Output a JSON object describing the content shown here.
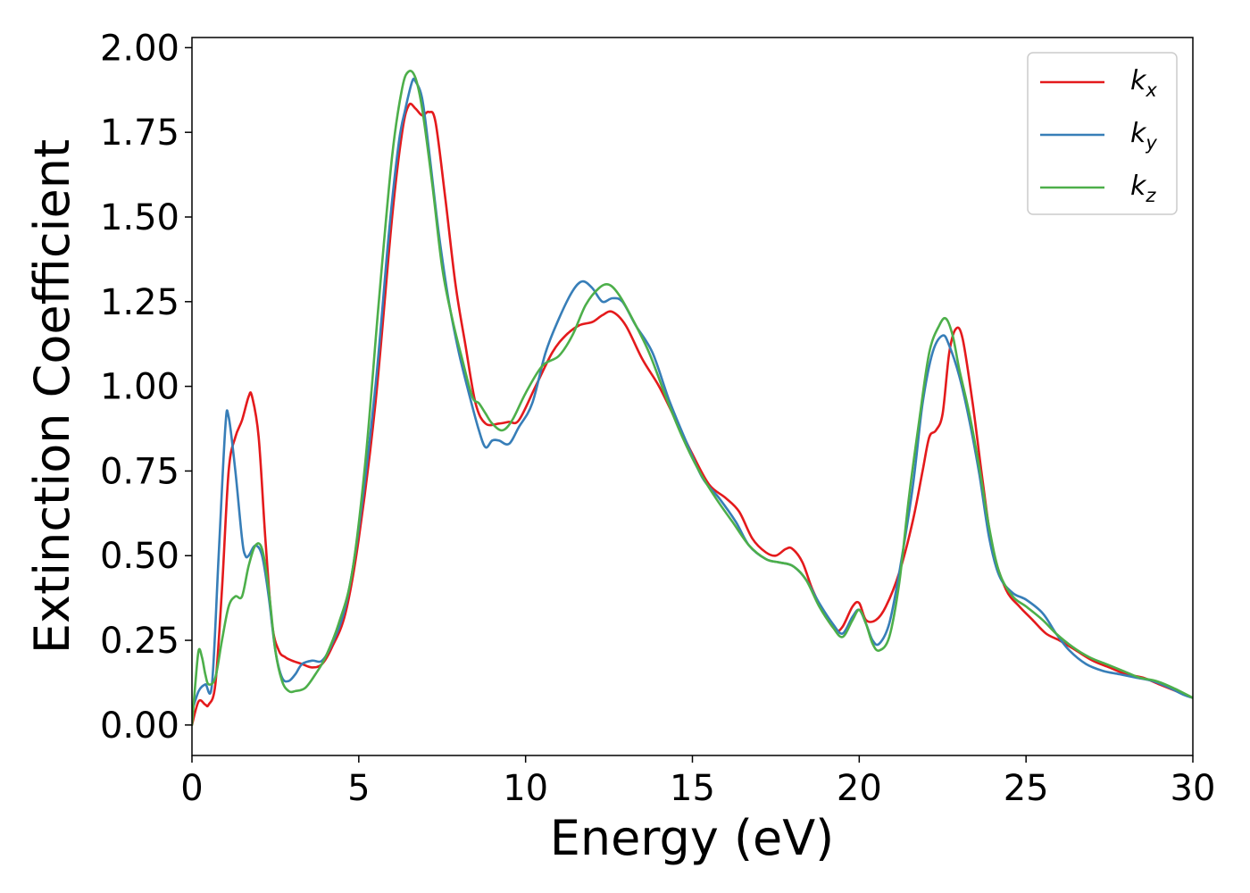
{
  "chart_data": {
    "type": "line",
    "xlabel": "Energy (eV)",
    "ylabel": "Extinction Coefficient",
    "xlim": [
      0,
      30
    ],
    "ylim": [
      -0.09,
      2.03
    ],
    "xticks": [
      0,
      5,
      10,
      15,
      20,
      25,
      30
    ],
    "xtick_labels": [
      "0",
      "5",
      "10",
      "15",
      "20",
      "25",
      "30"
    ],
    "yticks": [
      0,
      0.25,
      0.5,
      0.75,
      1.0,
      1.25,
      1.5,
      1.75,
      2.0
    ],
    "ytick_labels": [
      "0.00",
      "0.25",
      "0.50",
      "0.75",
      "1.00",
      "1.25",
      "1.50",
      "1.75",
      "2.00"
    ],
    "grid": false,
    "legend_position": "top-right",
    "series": [
      {
        "name": "k",
        "subscript": "x",
        "color": "#e41a1c",
        "points": [
          [
            0,
            0.0
          ],
          [
            0.2,
            0.07
          ],
          [
            0.4,
            0.06
          ],
          [
            0.5,
            0.06
          ],
          [
            0.7,
            0.12
          ],
          [
            0.9,
            0.4
          ],
          [
            1.1,
            0.75
          ],
          [
            1.3,
            0.85
          ],
          [
            1.5,
            0.9
          ],
          [
            1.7,
            0.97
          ],
          [
            1.8,
            0.97
          ],
          [
            2.0,
            0.85
          ],
          [
            2.2,
            0.55
          ],
          [
            2.4,
            0.3
          ],
          [
            2.6,
            0.22
          ],
          [
            2.8,
            0.2
          ],
          [
            3.0,
            0.19
          ],
          [
            3.3,
            0.18
          ],
          [
            3.6,
            0.17
          ],
          [
            3.9,
            0.18
          ],
          [
            4.2,
            0.23
          ],
          [
            4.6,
            0.33
          ],
          [
            5.0,
            0.55
          ],
          [
            5.5,
            0.95
          ],
          [
            6.0,
            1.5
          ],
          [
            6.3,
            1.75
          ],
          [
            6.5,
            1.83
          ],
          [
            6.7,
            1.82
          ],
          [
            6.9,
            1.8
          ],
          [
            7.1,
            1.81
          ],
          [
            7.3,
            1.78
          ],
          [
            7.6,
            1.55
          ],
          [
            7.9,
            1.3
          ],
          [
            8.2,
            1.12
          ],
          [
            8.5,
            0.95
          ],
          [
            8.8,
            0.89
          ],
          [
            9.2,
            0.89
          ],
          [
            9.5,
            0.895
          ],
          [
            9.8,
            0.9
          ],
          [
            10.3,
            1.0
          ],
          [
            10.8,
            1.1
          ],
          [
            11.2,
            1.15
          ],
          [
            11.6,
            1.18
          ],
          [
            12.0,
            1.19
          ],
          [
            12.3,
            1.21
          ],
          [
            12.6,
            1.22
          ],
          [
            13.0,
            1.18
          ],
          [
            13.5,
            1.08
          ],
          [
            14.0,
            1.0
          ],
          [
            14.5,
            0.9
          ],
          [
            15.0,
            0.8
          ],
          [
            15.5,
            0.71
          ],
          [
            16.0,
            0.67
          ],
          [
            16.4,
            0.63
          ],
          [
            16.8,
            0.55
          ],
          [
            17.2,
            0.51
          ],
          [
            17.5,
            0.5
          ],
          [
            17.8,
            0.52
          ],
          [
            18.0,
            0.52
          ],
          [
            18.3,
            0.48
          ],
          [
            18.6,
            0.4
          ],
          [
            19.0,
            0.32
          ],
          [
            19.3,
            0.28
          ],
          [
            19.5,
            0.29
          ],
          [
            19.8,
            0.35
          ],
          [
            20.0,
            0.36
          ],
          [
            20.2,
            0.31
          ],
          [
            20.5,
            0.31
          ],
          [
            20.8,
            0.35
          ],
          [
            21.2,
            0.45
          ],
          [
            21.6,
            0.6
          ],
          [
            21.9,
            0.75
          ],
          [
            22.1,
            0.85
          ],
          [
            22.3,
            0.87
          ],
          [
            22.5,
            0.92
          ],
          [
            22.7,
            1.1
          ],
          [
            22.9,
            1.17
          ],
          [
            23.1,
            1.14
          ],
          [
            23.4,
            0.95
          ],
          [
            23.7,
            0.72
          ],
          [
            24.0,
            0.52
          ],
          [
            24.4,
            0.4
          ],
          [
            24.8,
            0.35
          ],
          [
            25.2,
            0.31
          ],
          [
            25.6,
            0.27
          ],
          [
            26.0,
            0.25
          ],
          [
            26.5,
            0.22
          ],
          [
            27.0,
            0.19
          ],
          [
            27.5,
            0.17
          ],
          [
            28.0,
            0.15
          ],
          [
            28.5,
            0.14
          ],
          [
            29.0,
            0.12
          ],
          [
            29.5,
            0.1
          ],
          [
            30.0,
            0.08
          ]
        ]
      },
      {
        "name": "k",
        "subscript": "y",
        "color": "#377eb8",
        "points": [
          [
            0,
            0.04
          ],
          [
            0.2,
            0.1
          ],
          [
            0.4,
            0.12
          ],
          [
            0.6,
            0.12
          ],
          [
            0.8,
            0.5
          ],
          [
            1.0,
            0.88
          ],
          [
            1.1,
            0.91
          ],
          [
            1.3,
            0.75
          ],
          [
            1.5,
            0.55
          ],
          [
            1.6,
            0.5
          ],
          [
            1.7,
            0.5
          ],
          [
            1.9,
            0.53
          ],
          [
            2.1,
            0.5
          ],
          [
            2.3,
            0.38
          ],
          [
            2.5,
            0.22
          ],
          [
            2.7,
            0.14
          ],
          [
            2.9,
            0.13
          ],
          [
            3.1,
            0.15
          ],
          [
            3.3,
            0.18
          ],
          [
            3.6,
            0.19
          ],
          [
            3.9,
            0.19
          ],
          [
            4.2,
            0.24
          ],
          [
            4.6,
            0.35
          ],
          [
            5.0,
            0.58
          ],
          [
            5.5,
            1.0
          ],
          [
            5.9,
            1.45
          ],
          [
            6.2,
            1.72
          ],
          [
            6.4,
            1.82
          ],
          [
            6.6,
            1.9
          ],
          [
            6.7,
            1.9
          ],
          [
            6.9,
            1.85
          ],
          [
            7.1,
            1.7
          ],
          [
            7.4,
            1.45
          ],
          [
            7.7,
            1.25
          ],
          [
            8.0,
            1.1
          ],
          [
            8.3,
            0.98
          ],
          [
            8.6,
            0.87
          ],
          [
            8.8,
            0.82
          ],
          [
            9.0,
            0.84
          ],
          [
            9.2,
            0.84
          ],
          [
            9.5,
            0.83
          ],
          [
            9.8,
            0.88
          ],
          [
            10.2,
            0.95
          ],
          [
            10.6,
            1.1
          ],
          [
            11.0,
            1.2
          ],
          [
            11.4,
            1.28
          ],
          [
            11.7,
            1.31
          ],
          [
            12.0,
            1.29
          ],
          [
            12.3,
            1.25
          ],
          [
            12.6,
            1.26
          ],
          [
            12.9,
            1.25
          ],
          [
            13.3,
            1.18
          ],
          [
            13.8,
            1.1
          ],
          [
            14.3,
            0.96
          ],
          [
            14.8,
            0.84
          ],
          [
            15.3,
            0.73
          ],
          [
            15.8,
            0.67
          ],
          [
            16.3,
            0.6
          ],
          [
            16.7,
            0.53
          ],
          [
            17.2,
            0.49
          ],
          [
            17.6,
            0.48
          ],
          [
            18.0,
            0.47
          ],
          [
            18.4,
            0.43
          ],
          [
            18.8,
            0.36
          ],
          [
            19.2,
            0.3
          ],
          [
            19.5,
            0.27
          ],
          [
            19.8,
            0.32
          ],
          [
            20.0,
            0.34
          ],
          [
            20.2,
            0.3
          ],
          [
            20.4,
            0.25
          ],
          [
            20.6,
            0.24
          ],
          [
            20.9,
            0.3
          ],
          [
            21.2,
            0.45
          ],
          [
            21.6,
            0.7
          ],
          [
            21.9,
            0.95
          ],
          [
            22.2,
            1.1
          ],
          [
            22.5,
            1.15
          ],
          [
            22.7,
            1.12
          ],
          [
            23.0,
            1.03
          ],
          [
            23.3,
            0.9
          ],
          [
            23.6,
            0.74
          ],
          [
            23.9,
            0.55
          ],
          [
            24.2,
            0.44
          ],
          [
            24.6,
            0.39
          ],
          [
            25.0,
            0.37
          ],
          [
            25.5,
            0.33
          ],
          [
            25.9,
            0.27
          ],
          [
            26.3,
            0.22
          ],
          [
            26.8,
            0.18
          ],
          [
            27.3,
            0.16
          ],
          [
            27.8,
            0.15
          ],
          [
            28.3,
            0.14
          ],
          [
            28.8,
            0.13
          ],
          [
            29.3,
            0.11
          ],
          [
            29.7,
            0.09
          ],
          [
            30.0,
            0.08
          ]
        ]
      },
      {
        "name": "k",
        "subscript": "z",
        "color": "#4daf4a",
        "points": [
          [
            0,
            0.0
          ],
          [
            0.1,
            0.12
          ],
          [
            0.2,
            0.22
          ],
          [
            0.3,
            0.2
          ],
          [
            0.4,
            0.15
          ],
          [
            0.5,
            0.12
          ],
          [
            0.7,
            0.14
          ],
          [
            0.9,
            0.25
          ],
          [
            1.1,
            0.35
          ],
          [
            1.3,
            0.38
          ],
          [
            1.5,
            0.38
          ],
          [
            1.7,
            0.47
          ],
          [
            1.9,
            0.53
          ],
          [
            2.1,
            0.52
          ],
          [
            2.3,
            0.4
          ],
          [
            2.5,
            0.22
          ],
          [
            2.7,
            0.13
          ],
          [
            2.9,
            0.1
          ],
          [
            3.1,
            0.1
          ],
          [
            3.4,
            0.11
          ],
          [
            3.7,
            0.15
          ],
          [
            4.0,
            0.2
          ],
          [
            4.4,
            0.3
          ],
          [
            4.8,
            0.45
          ],
          [
            5.2,
            0.78
          ],
          [
            5.6,
            1.25
          ],
          [
            6.0,
            1.68
          ],
          [
            6.3,
            1.88
          ],
          [
            6.5,
            1.93
          ],
          [
            6.7,
            1.91
          ],
          [
            6.9,
            1.82
          ],
          [
            7.2,
            1.6
          ],
          [
            7.5,
            1.35
          ],
          [
            7.8,
            1.2
          ],
          [
            8.1,
            1.08
          ],
          [
            8.4,
            0.97
          ],
          [
            8.6,
            0.95
          ],
          [
            8.8,
            0.92
          ],
          [
            9.0,
            0.89
          ],
          [
            9.3,
            0.87
          ],
          [
            9.6,
            0.9
          ],
          [
            10.0,
            0.98
          ],
          [
            10.5,
            1.06
          ],
          [
            11.0,
            1.09
          ],
          [
            11.4,
            1.15
          ],
          [
            11.8,
            1.24
          ],
          [
            12.2,
            1.29
          ],
          [
            12.5,
            1.3
          ],
          [
            12.8,
            1.27
          ],
          [
            13.2,
            1.2
          ],
          [
            13.7,
            1.1
          ],
          [
            14.2,
            0.97
          ],
          [
            14.7,
            0.85
          ],
          [
            15.2,
            0.75
          ],
          [
            15.7,
            0.67
          ],
          [
            16.2,
            0.6
          ],
          [
            16.7,
            0.53
          ],
          [
            17.2,
            0.49
          ],
          [
            17.6,
            0.48
          ],
          [
            18.0,
            0.47
          ],
          [
            18.4,
            0.43
          ],
          [
            18.8,
            0.35
          ],
          [
            19.2,
            0.29
          ],
          [
            19.5,
            0.26
          ],
          [
            19.8,
            0.31
          ],
          [
            20.0,
            0.34
          ],
          [
            20.2,
            0.3
          ],
          [
            20.4,
            0.24
          ],
          [
            20.6,
            0.22
          ],
          [
            20.9,
            0.26
          ],
          [
            21.2,
            0.42
          ],
          [
            21.5,
            0.68
          ],
          [
            21.8,
            0.9
          ],
          [
            22.1,
            1.1
          ],
          [
            22.4,
            1.18
          ],
          [
            22.6,
            1.2
          ],
          [
            22.8,
            1.15
          ],
          [
            23.0,
            1.05
          ],
          [
            23.3,
            0.92
          ],
          [
            23.6,
            0.76
          ],
          [
            23.9,
            0.58
          ],
          [
            24.2,
            0.45
          ],
          [
            24.6,
            0.38
          ],
          [
            25.0,
            0.35
          ],
          [
            25.5,
            0.31
          ],
          [
            25.9,
            0.27
          ],
          [
            26.4,
            0.23
          ],
          [
            26.9,
            0.2
          ],
          [
            27.4,
            0.18
          ],
          [
            27.9,
            0.16
          ],
          [
            28.4,
            0.14
          ],
          [
            28.9,
            0.13
          ],
          [
            29.4,
            0.11
          ],
          [
            30.0,
            0.08
          ]
        ]
      }
    ]
  }
}
